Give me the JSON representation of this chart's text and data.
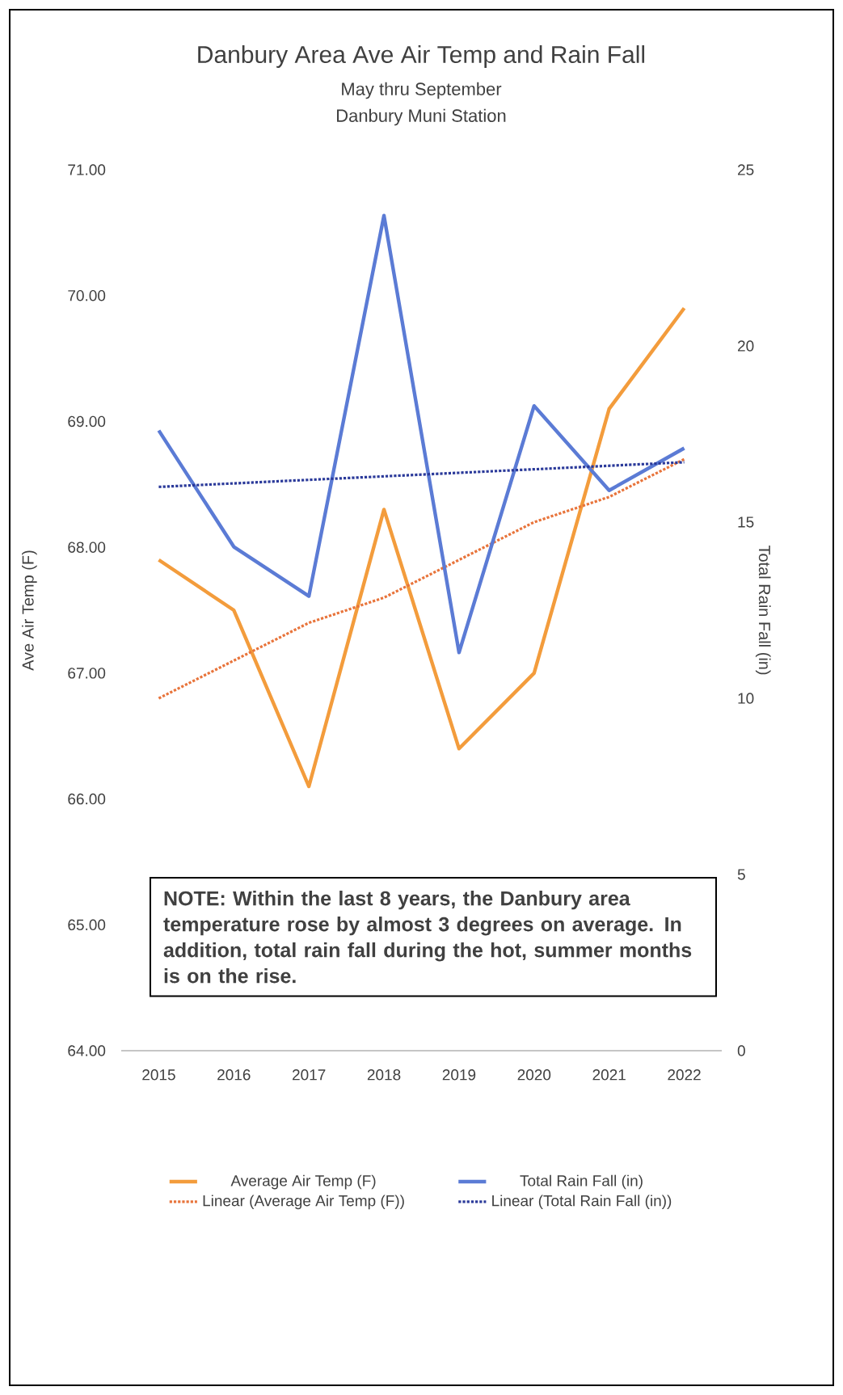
{
  "chart_data": {
    "type": "line",
    "title": "Danbury Area Ave Air Temp and Rain Fall",
    "subtitle": "May thru September",
    "annotations": [
      "Danbury Muni Station",
      "NOTE: Within the last 8 years, the Danbury area temperature rose by almost 3 degrees on average.  In addition, total rain fall during the hot, summer months is on the rise."
    ],
    "ylabel": "Ave Air Temp (F)",
    "y2label": "Total Rain Fall (in)",
    "x": [
      2015,
      2016,
      2017,
      2018,
      2019,
      2020,
      2021,
      2022
    ],
    "xlim": [
      2014.5,
      2022.5
    ],
    "xticks": [
      2015,
      2016,
      2017,
      2018,
      2019,
      2020,
      2021,
      2022
    ],
    "ylim": [
      64,
      71
    ],
    "yticks": [
      {
        "value": 64,
        "label": "64.00"
      },
      {
        "value": 65,
        "label": "65.00"
      },
      {
        "value": 66,
        "label": "66.00"
      },
      {
        "value": 67,
        "label": "67.00"
      },
      {
        "value": 68,
        "label": "68.00"
      },
      {
        "value": 69,
        "label": "69.00"
      },
      {
        "value": 70,
        "label": "70.00"
      },
      {
        "value": 71,
        "label": "71.00"
      }
    ],
    "y2lim": [
      0,
      25
    ],
    "y2ticks": [
      0,
      5,
      10,
      15,
      20,
      25
    ],
    "legend": "bottom",
    "series": [
      {
        "name": "Average Air Temp (F)",
        "color": "#f39c3c",
        "values": [
          67.9,
          67.5,
          66.1,
          68.3,
          66.4,
          67.0,
          69.1,
          69.9
        ]
      },
      {
        "name": "Total Rain Fall (in)",
        "color": "#5b7bd5",
        "axis": "y2",
        "values": [
          17.6,
          14.3,
          12.9,
          23.7,
          11.3,
          18.3,
          15.9,
          17.1
        ]
      },
      {
        "name": "Linear (Average Air Temp (F))",
        "color": "#e8743b",
        "line_style": "dotted",
        "values": [
          66.8,
          67.1,
          67.4,
          67.6,
          67.9,
          68.2,
          68.4,
          68.7
        ]
      },
      {
        "name": "Linear (Total Rain Fall (in))",
        "color": "#2b3a9a",
        "line_style": "dotted",
        "axis": "y2",
        "values": [
          16.0,
          16.1,
          16.2,
          16.3,
          16.4,
          16.5,
          16.6,
          16.7
        ]
      }
    ]
  }
}
